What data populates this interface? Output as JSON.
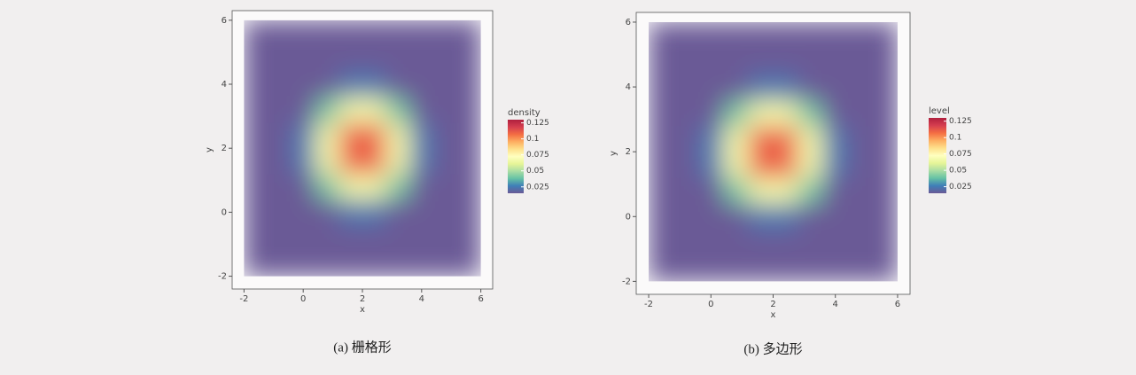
{
  "chart_data": [
    {
      "type": "heatmap",
      "x_label": "x",
      "y_label": "y",
      "caption": "(a) 栅格形",
      "xlim": [
        -2.4,
        6.4
      ],
      "ylim": [
        -2.4,
        6.3
      ],
      "xticks": [
        -2,
        0,
        2,
        4,
        6
      ],
      "yticks": [
        -2,
        0,
        2,
        4,
        6
      ],
      "x_edges": [
        -2,
        -1.2,
        -0.4,
        0.4,
        1.2,
        2,
        2.8,
        3.6,
        4.4,
        5.2,
        6
      ],
      "y_edges": [
        -2,
        -1.2,
        -0.4,
        0.4,
        1.2,
        2,
        2.8,
        3.6,
        4.4,
        5.2,
        6
      ],
      "values": [
        [
          0,
          0,
          0,
          0,
          0.001,
          0.001,
          0,
          0,
          0,
          0
        ],
        [
          0,
          0,
          0.001,
          0.003,
          0.005,
          0.005,
          0.003,
          0.001,
          0,
          0
        ],
        [
          0,
          0.001,
          0.005,
          0.015,
          0.024,
          0.024,
          0.015,
          0.005,
          0.001,
          0
        ],
        [
          0,
          0.003,
          0.015,
          0.04,
          0.067,
          0.067,
          0.04,
          0.015,
          0.003,
          0
        ],
        [
          0.001,
          0.005,
          0.024,
          0.067,
          0.11,
          0.11,
          0.067,
          0.024,
          0.005,
          0.001
        ],
        [
          0.001,
          0.005,
          0.024,
          0.067,
          0.11,
          0.11,
          0.067,
          0.024,
          0.005,
          0.001
        ],
        [
          0,
          0.003,
          0.015,
          0.04,
          0.067,
          0.067,
          0.04,
          0.015,
          0.003,
          0
        ],
        [
          0,
          0.001,
          0.005,
          0.015,
          0.024,
          0.024,
          0.015,
          0.005,
          0.001,
          0
        ],
        [
          0,
          0,
          0.001,
          0.003,
          0.005,
          0.005,
          0.003,
          0.001,
          0,
          0
        ],
        [
          0,
          0,
          0,
          0,
          0.001,
          0.001,
          0,
          0,
          0,
          0
        ]
      ],
      "legend_title": "density",
      "clim": [
        0.015,
        0.13
      ],
      "cticks": [
        0.025,
        0.05,
        0.075,
        0.1,
        0.125
      ],
      "colors": [
        "#6a5a96",
        "#3f7fb8",
        "#66c2a5",
        "#abdda4",
        "#e6f598",
        "#ffffbf",
        "#fee08b",
        "#fdae61",
        "#f46d43",
        "#d53e4f",
        "#b0203e"
      ]
    },
    {
      "type": "heatmap",
      "x_label": "x",
      "y_label": "y",
      "caption": "(b) 多边形",
      "xlim": [
        -2.4,
        6.4
      ],
      "ylim": [
        -2.4,
        6.3
      ],
      "xticks": [
        -2,
        0,
        2,
        4,
        6
      ],
      "yticks": [
        -2,
        0,
        2,
        4,
        6
      ],
      "x_edges": [
        -2,
        -1.2,
        -0.4,
        0.4,
        1.2,
        2,
        2.8,
        3.6,
        4.4,
        5.2,
        6
      ],
      "y_edges": [
        -2,
        -1.2,
        -0.4,
        0.4,
        1.2,
        2,
        2.8,
        3.6,
        4.4,
        5.2,
        6
      ],
      "values": [
        [
          0,
          0,
          0,
          0,
          0.001,
          0.001,
          0,
          0,
          0,
          0
        ],
        [
          0,
          0,
          0.001,
          0.003,
          0.005,
          0.005,
          0.003,
          0.001,
          0,
          0
        ],
        [
          0,
          0.001,
          0.005,
          0.015,
          0.024,
          0.024,
          0.015,
          0.005,
          0.001,
          0
        ],
        [
          0,
          0.003,
          0.015,
          0.04,
          0.067,
          0.067,
          0.04,
          0.015,
          0.003,
          0
        ],
        [
          0.001,
          0.005,
          0.024,
          0.067,
          0.11,
          0.11,
          0.067,
          0.024,
          0.005,
          0.001
        ],
        [
          0.001,
          0.005,
          0.024,
          0.067,
          0.11,
          0.11,
          0.067,
          0.024,
          0.005,
          0.001
        ],
        [
          0,
          0.003,
          0.015,
          0.04,
          0.067,
          0.067,
          0.04,
          0.015,
          0.003,
          0
        ],
        [
          0,
          0.001,
          0.005,
          0.015,
          0.024,
          0.024,
          0.015,
          0.005,
          0.001,
          0
        ],
        [
          0,
          0,
          0.001,
          0.003,
          0.005,
          0.005,
          0.003,
          0.001,
          0,
          0
        ],
        [
          0,
          0,
          0,
          0,
          0.001,
          0.001,
          0,
          0,
          0,
          0
        ]
      ],
      "legend_title": "level",
      "clim": [
        0.015,
        0.13
      ],
      "cticks": [
        0.025,
        0.05,
        0.075,
        0.1,
        0.125
      ],
      "colors": [
        "#6a5a96",
        "#3f7fb8",
        "#66c2a5",
        "#abdda4",
        "#e6f598",
        "#ffffbf",
        "#fee08b",
        "#fdae61",
        "#f46d43",
        "#d53e4f",
        "#b0203e"
      ]
    }
  ]
}
